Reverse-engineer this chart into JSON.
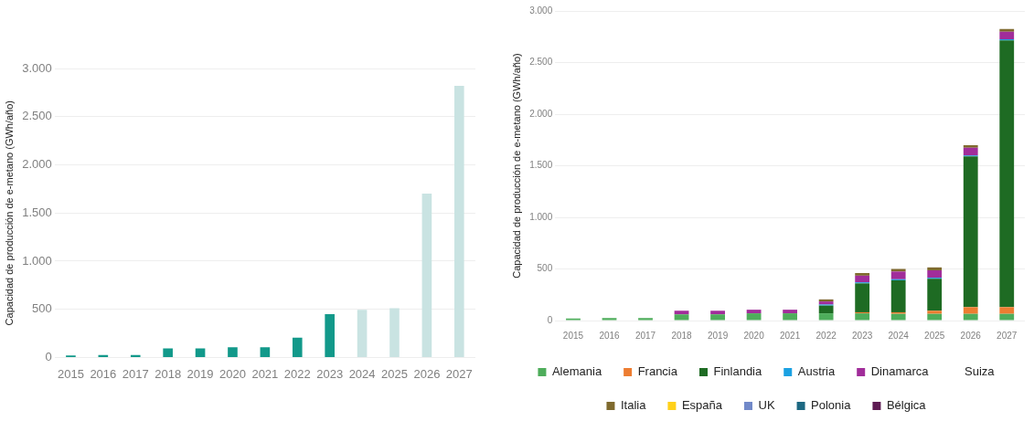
{
  "chart_data": [
    {
      "type": "bar",
      "ylabel": "Capacidad de producción de e-metano (GWh/año)",
      "categories": [
        "2015",
        "2016",
        "2017",
        "2018",
        "2019",
        "2020",
        "2021",
        "2022",
        "2023",
        "2024",
        "2025",
        "2026",
        "2027"
      ],
      "values": [
        20,
        25,
        25,
        95,
        95,
        105,
        105,
        205,
        450,
        495,
        510,
        1700,
        2820
      ],
      "colors": [
        "#12998a",
        "#12998a",
        "#12998a",
        "#12998a",
        "#12998a",
        "#12998a",
        "#12998a",
        "#12998a",
        "#12998a",
        "#c9e3e2",
        "#c9e3e2",
        "#c9e3e2",
        "#c9e3e2"
      ],
      "ylim": [
        0,
        3000
      ],
      "yticks": [
        {
          "value": 0,
          "label": "0"
        },
        {
          "value": 500,
          "label": "500"
        },
        {
          "value": 1000,
          "label": "1.000"
        },
        {
          "value": 1500,
          "label": "1.500"
        },
        {
          "value": 2000,
          "label": "2.000"
        },
        {
          "value": 2500,
          "label": "2.500"
        },
        {
          "value": 3000,
          "label": "3.000"
        }
      ],
      "grid": "y",
      "legend": false
    },
    {
      "type": "bar",
      "ylabel": "Capacidad de producción de e-metano (GWh/año)",
      "stacked": true,
      "categories": [
        "2015",
        "2016",
        "2017",
        "2018",
        "2019",
        "2020",
        "2021",
        "2022",
        "2023",
        "2024",
        "2025",
        "2026",
        "2027"
      ],
      "series": [
        {
          "name": "Alemania",
          "color": "#4ead5b",
          "values": [
            20,
            25,
            25,
            60,
            60,
            70,
            70,
            70,
            70,
            65,
            65,
            65,
            65
          ]
        },
        {
          "name": "Francia",
          "color": "#ed7d31",
          "values": [
            null,
            null,
            null,
            null,
            null,
            null,
            null,
            null,
            10,
            15,
            30,
            65,
            65
          ]
        },
        {
          "name": "Finlandia",
          "color": "#1e6b23",
          "values": [
            null,
            null,
            null,
            null,
            null,
            null,
            null,
            75,
            280,
            310,
            310,
            1460,
            2585
          ]
        },
        {
          "name": "Austria",
          "color": "#1ba1e2",
          "values": [
            null,
            null,
            null,
            null,
            null,
            null,
            null,
            10,
            10,
            10,
            10,
            10,
            10
          ]
        },
        {
          "name": "Dinamarca",
          "color": "#a12d9a",
          "values": [
            null,
            null,
            null,
            35,
            35,
            35,
            35,
            30,
            65,
            75,
            72,
            75,
            73
          ]
        },
        {
          "name": "Suiza",
          "values": [
            null,
            null,
            null,
            null,
            null,
            null,
            null,
            null,
            null,
            null,
            null,
            null,
            null
          ]
        },
        {
          "name": "Italia",
          "color": "#7f6a2e",
          "values": [
            null,
            null,
            null,
            null,
            null,
            null,
            null,
            20,
            25,
            25,
            28,
            25,
            27
          ]
        },
        {
          "name": "España",
          "color": "#ffd11a",
          "values": [
            null,
            null,
            null,
            null,
            null,
            null,
            null,
            null,
            null,
            null,
            null,
            null,
            null
          ]
        },
        {
          "name": "UK",
          "color": "#7189c9",
          "values": [
            null,
            null,
            null,
            null,
            null,
            null,
            null,
            null,
            null,
            null,
            null,
            null,
            null
          ]
        },
        {
          "name": "Polonia",
          "color": "#1d6882",
          "values": [
            null,
            null,
            null,
            null,
            null,
            null,
            null,
            null,
            null,
            null,
            null,
            null,
            null
          ]
        },
        {
          "name": "Bélgica",
          "color": "#5e1b53",
          "values": [
            null,
            null,
            null,
            null,
            null,
            null,
            null,
            null,
            null,
            null,
            null,
            null,
            null
          ]
        }
      ],
      "ylim": [
        0,
        3000
      ],
      "yticks": [
        {
          "value": 0,
          "label": "0"
        },
        {
          "value": 500,
          "label": "500"
        },
        {
          "value": 1000,
          "label": "1.000"
        },
        {
          "value": 1500,
          "label": "1.500"
        },
        {
          "value": 2000,
          "label": "2.000"
        },
        {
          "value": 2500,
          "label": "2.500"
        },
        {
          "value": 3000,
          "label": "3.000"
        }
      ],
      "grid": "y",
      "legend": "bottom"
    }
  ]
}
